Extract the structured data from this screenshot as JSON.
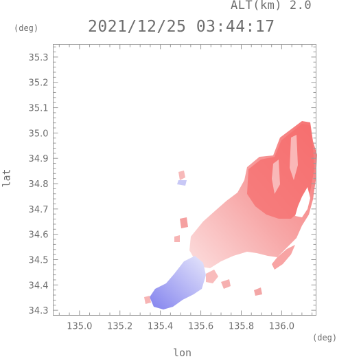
{
  "header": {
    "altitude_label": "ALT(km) 2.0",
    "timestamp": "2021/12/25 03:44:17"
  },
  "axes": {
    "x_unit": "(deg)",
    "y_unit": "(deg)",
    "xlabel": "lon",
    "ylabel": "lat",
    "x_ticks": [
      "135.0",
      "135.2",
      "135.4",
      "135.6",
      "135.8",
      "136.0"
    ],
    "y_ticks": [
      "35.3",
      "35.2",
      "35.1",
      "35.0",
      "34.9",
      "34.8",
      "34.7",
      "34.6",
      "34.5",
      "34.4",
      "34.3"
    ]
  },
  "chart_data": {
    "type": "heatmap",
    "x_range": [
      134.87,
      136.17
    ],
    "y_range": [
      34.28,
      35.35
    ],
    "colors": {
      "positive": "#f77b7b",
      "negative": "#8a8af0",
      "zero": "#ffffff"
    }
  }
}
